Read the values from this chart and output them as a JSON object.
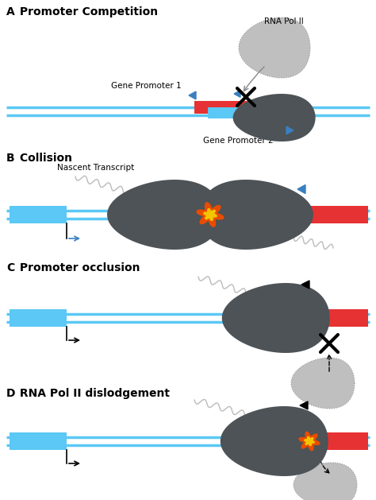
{
  "title_A": "A Promoter Competition",
  "title_B": "B Collision",
  "title_C": "C Promoter occlusion",
  "title_D": "D RNA Pol II dislodgement",
  "bg_color": "#ffffff",
  "dna_color": "#5bc8f5",
  "red_color": "#e63232",
  "pol_color": "#4d5357",
  "pol_light_color": "#b8b8b8",
  "arrow_color": "#3a7fc1",
  "wavy_color": "#c0c0c0",
  "fire_orange": "#e84c00",
  "fire_yellow": "#f5c400"
}
